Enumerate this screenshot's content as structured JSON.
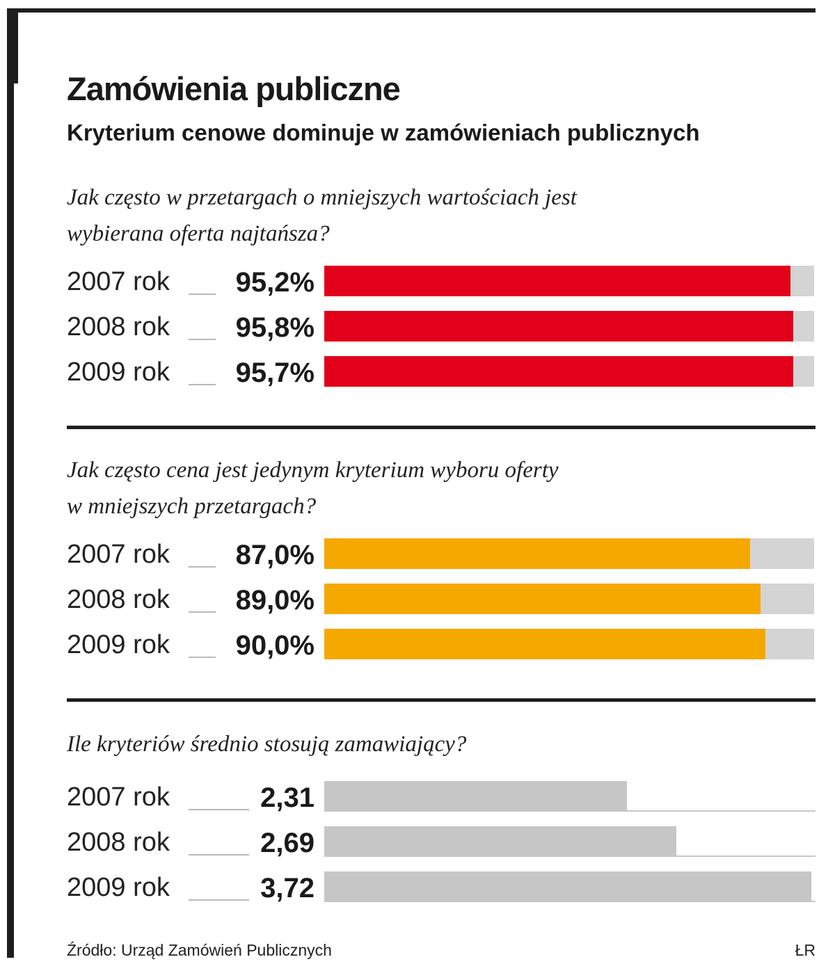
{
  "colors": {
    "red": "#e2001a",
    "orange": "#f5a800",
    "grey": "#c6c6c6",
    "track": "#d4d4d4"
  },
  "header": {
    "title": "Zamówienia publiczne",
    "subtitle": "Kryterium cenowe dominuje w zamówieniach publicznych"
  },
  "footer": {
    "source": "Źródło: Urząd Zamówień Publicznych",
    "author": "ŁR"
  },
  "chart_data": [
    {
      "type": "bar",
      "orientation": "horizontal",
      "title": "Jak często w przetargach o mniejszych wartościach jest wybierana oferta najtańsza?",
      "title_lines": [
        "Jak często w przetargach o mniejszych wartościach jest",
        "wybierana oferta najtańsza?"
      ],
      "categories": [
        "2007 rok",
        "2008 rok",
        "2009 rok"
      ],
      "values": [
        95.2,
        95.8,
        95.7
      ],
      "labels": [
        "95,2%",
        "95,8%",
        "95,7%"
      ],
      "xlim": [
        0,
        100
      ],
      "color": "#e2001a"
    },
    {
      "type": "bar",
      "orientation": "horizontal",
      "title": "Jak często cena jest jedynym kryterium wyboru oferty w mniejszych przetargach?",
      "title_lines": [
        "Jak często cena jest jedynym kryterium wyboru oferty",
        "w mniejszych  przetargach?"
      ],
      "categories": [
        "2007 rok",
        "2008 rok",
        "2009 rok"
      ],
      "values": [
        87.0,
        89.0,
        90.0
      ],
      "labels": [
        "87,0%",
        "89,0%",
        "90,0%"
      ],
      "xlim": [
        0,
        100
      ],
      "color": "#f5a800"
    },
    {
      "type": "bar",
      "orientation": "horizontal",
      "title": "Ile kryteriów średnio stosują zamawiający?",
      "title_lines": [
        "Ile kryteriów  średnio stosują zamawiający?"
      ],
      "categories": [
        "2007 rok",
        "2008 rok",
        "2009 rok"
      ],
      "values": [
        2.31,
        2.69,
        3.72
      ],
      "labels": [
        "2,31",
        "2,69",
        "3,72"
      ],
      "xlim": [
        0,
        3.72
      ],
      "color": "#c6c6c6"
    }
  ]
}
